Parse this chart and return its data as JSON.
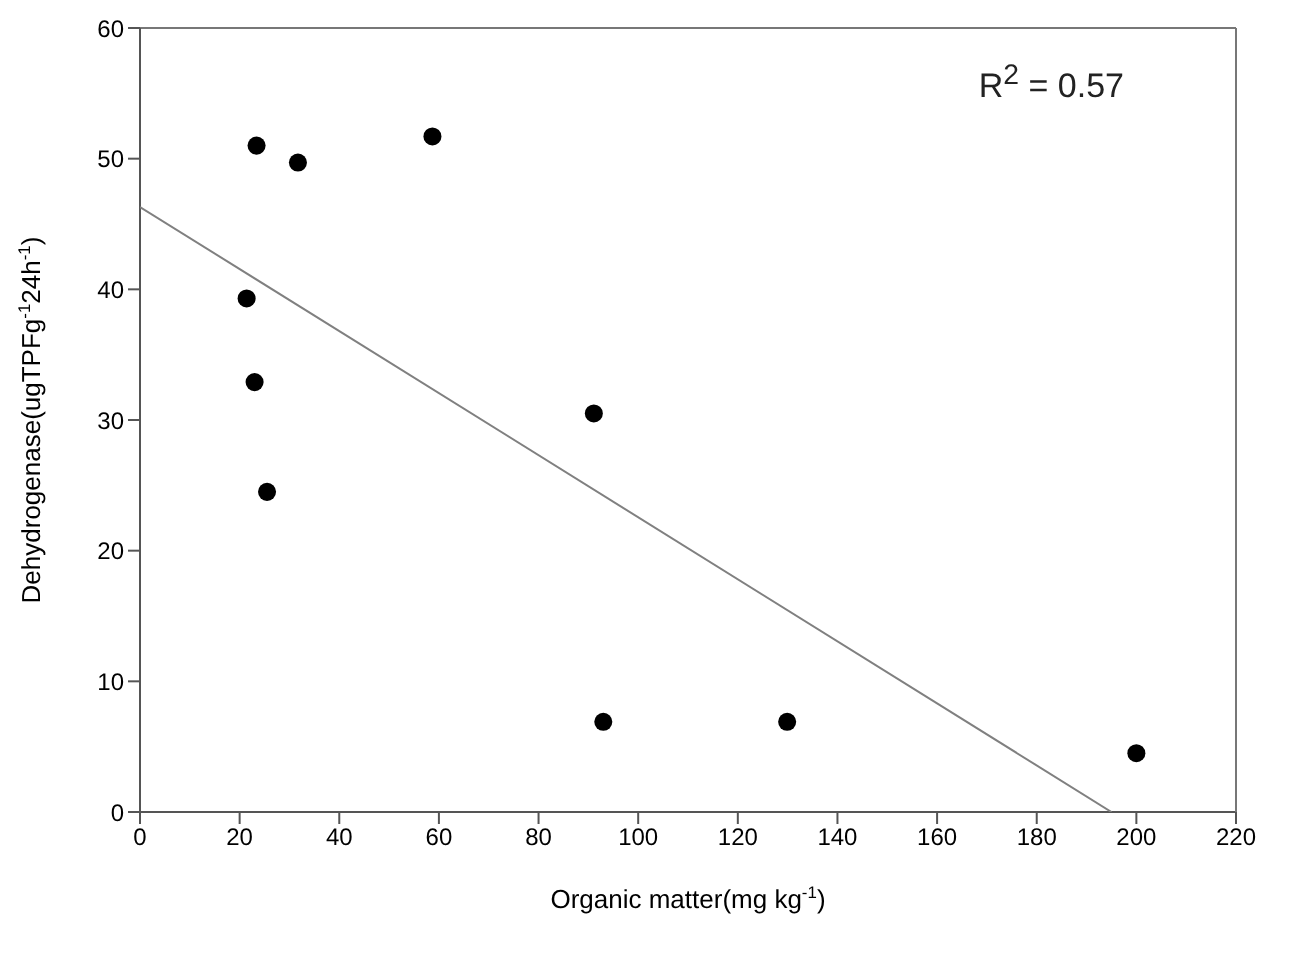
{
  "chart_data": {
    "type": "scatter",
    "xlabel": "Organic matter(mg kg$^{-1}$)",
    "ylabel": "Dehydrogenase(ugTPFg$^{-1}$24h$^{-1}$)",
    "annotations": [
      "R$^{2}$ = 0.57"
    ],
    "x": [
      21.4,
      23.4,
      23.0,
      25.5,
      31.7,
      58.7,
      91.1,
      93.0,
      129.9,
      200.0
    ],
    "series": [
      {
        "color": "#000000",
        "marker": "circle",
        "values": [
          39.3,
          51.0,
          32.9,
          24.5,
          49.7,
          51.7,
          30.5,
          6.9,
          6.9,
          4.5
        ]
      },
      {
        "type": "line",
        "color": "#808080",
        "marker": "none",
        "line_style": "solid",
        "x": [
          0,
          195
        ],
        "values": [
          46.3,
          0
        ]
      }
    ],
    "xlim": [
      0,
      220
    ],
    "xticks": [
      0,
      20,
      40,
      60,
      80,
      100,
      120,
      140,
      160,
      180,
      200,
      220
    ],
    "ylim": [
      0,
      60
    ],
    "yticks": [
      0,
      10,
      20,
      30,
      40,
      50,
      60
    ]
  }
}
